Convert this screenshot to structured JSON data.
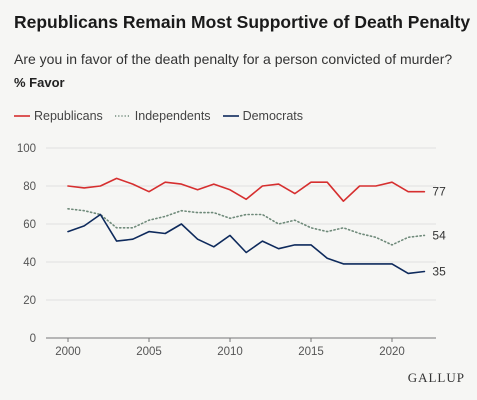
{
  "header": {
    "title": "Republicans Remain Most Supportive of Death Penalty",
    "subtitle": "Are you in favor of the death penalty for a person convicted of murder?",
    "measure": "% Favor"
  },
  "logo": "GALLUP",
  "colors": {
    "republicans": "#d62f2f",
    "independents": "#6f8a7a",
    "democrats": "#0e2a5c",
    "grid": "#d9d9d9",
    "axis": "#777777"
  },
  "chart_data": {
    "type": "line",
    "title": "Republicans Remain Most Supportive of Death Penalty",
    "subtitle": "Are you in favor of the death penalty for a person convicted of murder?",
    "ylabel": "% Favor",
    "xlabel": "",
    "xlim": [
      2000,
      2022
    ],
    "ylim": [
      0,
      100
    ],
    "x_ticks": [
      2000,
      2005,
      2010,
      2015,
      2020
    ],
    "y_ticks": [
      0,
      20,
      40,
      60,
      80,
      100
    ],
    "grid": true,
    "legend_position": "top-left",
    "x": [
      2000,
      2001,
      2002,
      2003,
      2004,
      2005,
      2006,
      2007,
      2008,
      2009,
      2010,
      2011,
      2012,
      2013,
      2014,
      2015,
      2016,
      2017,
      2018,
      2019,
      2020,
      2021,
      2022
    ],
    "series": [
      {
        "name": "Republicans",
        "style": "solid",
        "color": "#d62f2f",
        "end_label": "77",
        "values": [
          80,
          79,
          80,
          84,
          81,
          77,
          82,
          81,
          78,
          81,
          78,
          73,
          80,
          81,
          76,
          82,
          82,
          72,
          80,
          80,
          82,
          77,
          77
        ]
      },
      {
        "name": "Independents",
        "style": "dotted",
        "color": "#6f8a7a",
        "end_label": "54",
        "values": [
          68,
          67,
          65,
          58,
          58,
          62,
          64,
          67,
          66,
          66,
          63,
          65,
          65,
          60,
          62,
          58,
          56,
          58,
          55,
          53,
          49,
          53,
          54
        ]
      },
      {
        "name": "Democrats",
        "style": "solid",
        "color": "#0e2a5c",
        "end_label": "35",
        "values": [
          56,
          59,
          65,
          51,
          52,
          56,
          55,
          60,
          52,
          48,
          54,
          45,
          51,
          47,
          49,
          49,
          42,
          39,
          39,
          39,
          39,
          34,
          35
        ]
      }
    ]
  }
}
